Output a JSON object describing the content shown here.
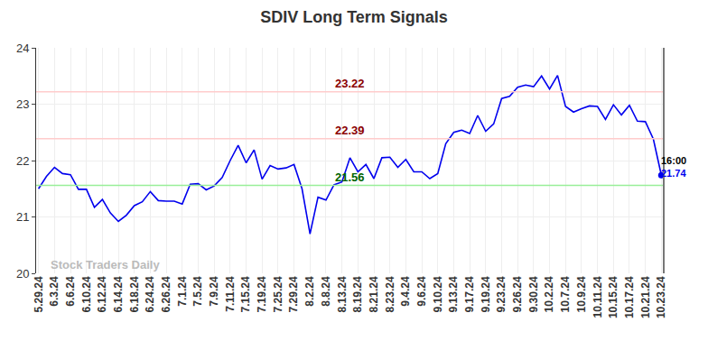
{
  "chart_data": {
    "type": "line",
    "title": "SDIV Long Term Signals",
    "watermark": "Stock Traders Daily",
    "color": "#0000ee",
    "grid": true,
    "categories": [
      "5.29.24",
      null,
      "6.3.24",
      null,
      "6.6.24",
      null,
      "6.10.24",
      null,
      "6.12.24",
      null,
      "6.14.24",
      null,
      "6.18.24",
      null,
      "6.24.24",
      null,
      "6.26.24",
      null,
      "7.1.24",
      null,
      "7.5.24",
      null,
      "7.9.24",
      null,
      "7.11.24",
      null,
      "7.15.24",
      null,
      "7.19.24",
      null,
      "7.25.24",
      null,
      "7.29.24",
      null,
      "8.2.24",
      null,
      "8.8.24",
      null,
      "8.13.24",
      null,
      "8.19.24",
      null,
      "8.21.24",
      null,
      "8.23.24",
      null,
      "9.4.24",
      null,
      "9.6.24",
      null,
      "9.10.24",
      null,
      "9.13.24",
      null,
      "9.17.24",
      null,
      "9.19.24",
      null,
      "9.23.24",
      null,
      "9.26.24",
      null,
      "9.30.24",
      null,
      "10.2.24",
      null,
      "10.7.24",
      null,
      "10.9.24",
      null,
      "10.11.24",
      null,
      "10.15.24",
      null,
      "10.17.24",
      null,
      "10.21.24",
      null,
      "10.23.24"
    ],
    "values": [
      21.5,
      21.72,
      21.88,
      21.77,
      21.75,
      21.49,
      21.49,
      21.17,
      21.31,
      21.07,
      20.92,
      21.03,
      21.2,
      21.27,
      21.45,
      21.29,
      21.28,
      21.28,
      21.23,
      21.58,
      21.59,
      21.48,
      21.55,
      21.7,
      22.0,
      22.27,
      21.96,
      22.19,
      21.67,
      21.91,
      21.85,
      21.87,
      21.93,
      21.5,
      20.7,
      21.35,
      21.3,
      21.57,
      21.62,
      22.05,
      21.8,
      21.93,
      21.68,
      22.05,
      22.06,
      21.88,
      22.02,
      21.8,
      21.8,
      21.68,
      21.77,
      22.3,
      22.5,
      22.54,
      22.48,
      22.8,
      22.52,
      22.65,
      23.1,
      23.14,
      23.3,
      23.34,
      23.31,
      23.5,
      23.27,
      23.51,
      22.96,
      22.86,
      22.92,
      22.97,
      22.96,
      22.73,
      22.99,
      22.81,
      22.98,
      22.7,
      22.69,
      22.38,
      21.74
    ],
    "ylim": [
      20,
      24
    ],
    "yticks": [
      20,
      21,
      22,
      23,
      24
    ],
    "hlines": [
      {
        "value": 23.22,
        "label": "23.22",
        "color": "#ffcccc",
        "label_color": "#8b0000"
      },
      {
        "value": 22.39,
        "label": "22.39",
        "color": "#ffcccc",
        "label_color": "#8b0000"
      },
      {
        "value": 21.56,
        "label": "21.56",
        "color": "#99ee99",
        "label_color": "#006400"
      }
    ],
    "last_point": {
      "label": "16:00",
      "value": 21.74
    }
  }
}
